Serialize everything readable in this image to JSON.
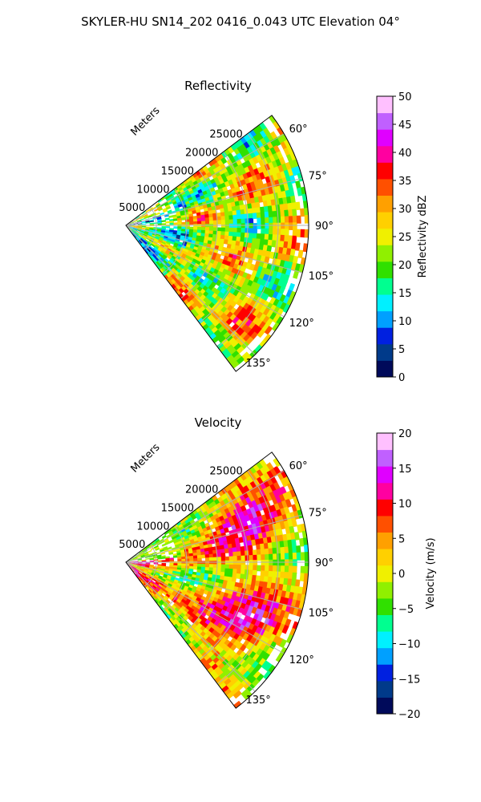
{
  "figure": {
    "title": "SKYLER-HU  SN14_202  0416_0.043 UTC Elevation 04°"
  },
  "chart_data": [
    {
      "type": "heatmap",
      "title": "Reflectivity",
      "radial_label": "Meters",
      "radial_ticks": [
        "5000",
        "10000",
        "15000",
        "20000",
        "25000"
      ],
      "radial_tick_values": [
        5000,
        10000,
        15000,
        20000,
        25000
      ],
      "rlim": [
        0,
        30000
      ],
      "azimuth_ticks": [
        "60°",
        "75°",
        "90°",
        "105°",
        "120°",
        "135°"
      ],
      "azimuth_tick_values": [
        60,
        75,
        90,
        105,
        120,
        135
      ],
      "azimuth_range": [
        53,
        143
      ],
      "grid": true,
      "colorbar": {
        "label": "Reflectivity dBZ",
        "min": 0,
        "max": 50,
        "ticks": [
          "0",
          "5",
          "10",
          "15",
          "20",
          "25",
          "30",
          "35",
          "40",
          "45",
          "50"
        ],
        "tick_values": [
          0,
          5,
          10,
          15,
          20,
          25,
          30,
          35,
          40,
          45,
          50
        ]
      }
    },
    {
      "type": "heatmap",
      "title": "Velocity",
      "radial_label": "Meters",
      "radial_ticks": [
        "5000",
        "10000",
        "15000",
        "20000",
        "25000"
      ],
      "radial_tick_values": [
        5000,
        10000,
        15000,
        20000,
        25000
      ],
      "rlim": [
        0,
        30000
      ],
      "azimuth_ticks": [
        "60°",
        "75°",
        "90°",
        "105°",
        "120°",
        "135°"
      ],
      "azimuth_tick_values": [
        60,
        75,
        90,
        105,
        120,
        135
      ],
      "azimuth_range": [
        53,
        143
      ],
      "grid": true,
      "colorbar": {
        "label": "Velocity (m/s)",
        "min": -20,
        "max": 20,
        "ticks": [
          "−20",
          "−15",
          "−10",
          "−5",
          "0",
          "5",
          "10",
          "15",
          "20"
        ],
        "tick_values": [
          -20,
          -15,
          -10,
          -5,
          0,
          5,
          10,
          15,
          20
        ]
      }
    }
  ],
  "colormap": [
    "#000a5a",
    "#003a8a",
    "#0020e0",
    "#00a0ff",
    "#00f0ff",
    "#00ff90",
    "#30e000",
    "#90f000",
    "#f0f000",
    "#ffd000",
    "#ffa000",
    "#ff5000",
    "#ff0000",
    "#ff00a0",
    "#e000ff",
    "#c060ff",
    "#ffc0ff"
  ]
}
